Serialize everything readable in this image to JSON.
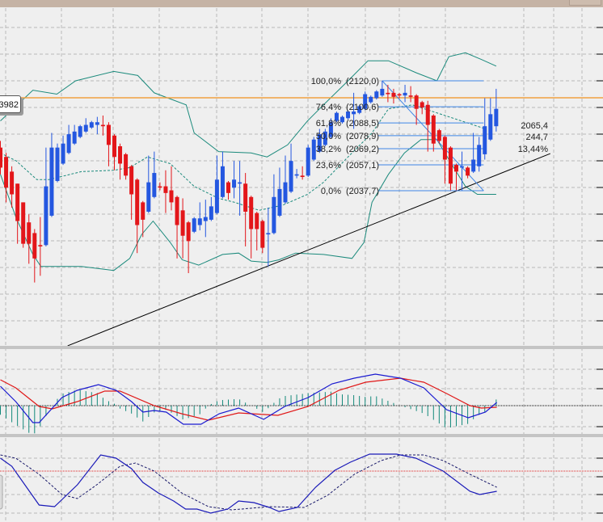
{
  "price_label": "3982",
  "stats": {
    "price": "2065,4",
    "range": "244,7",
    "percent": "13,44%"
  },
  "colors": {
    "up": "#2457e0",
    "down": "#e3161a",
    "band": "#1b8a7c",
    "fib": "#3f86e6",
    "hline": "#f0a040",
    "macd": "#1a1ad0",
    "signal": "#e01818",
    "hist": "#13897a",
    "stoch_k": "#1a1ab8",
    "stoch_d": "#1a1a6a",
    "grid": "#b8b8b8"
  },
  "chart_data": {
    "type": "candlestick",
    "title": "",
    "horizontal_line_price": 2107.3,
    "fibonacci": {
      "start_index": 67,
      "end_index": 84.8,
      "levels": [
        {
          "pct": "100,0%",
          "price": "(2120,0)",
          "value": 2120.0
        },
        {
          "pct": "76,4%",
          "price": "(2100,6)",
          "value": 2100.6
        },
        {
          "pct": "61,8%",
          "price": "(2088,5)",
          "value": 2088.5
        },
        {
          "pct": "50,0%",
          "price": "(2078,9)",
          "value": 2078.9
        },
        {
          "pct": "38,2%",
          "price": "(2069,2)",
          "value": 2069.2
        },
        {
          "pct": "23,6%",
          "price": "(2057,1)",
          "value": 2057.1
        },
        {
          "pct": "0,0%",
          "price": "(2037,7)",
          "value": 2037.7
        }
      ]
    },
    "trendline": [
      [
        11.8,
        1921.6
      ],
      [
        96.5,
        2065.5
      ]
    ],
    "candles_ohlc": [
      [
        2070,
        2075,
        2050,
        2055
      ],
      [
        2063,
        2066,
        2029,
        2040
      ],
      [
        2052,
        2056,
        2025,
        2035
      ],
      [
        2043,
        2043,
        1998,
        2015
      ],
      [
        2029,
        2029,
        1995,
        1998
      ],
      [
        2014,
        2020,
        1983,
        1998
      ],
      [
        2006,
        2009,
        1969,
        1987
      ],
      [
        1997,
        2018,
        1974,
        1996
      ],
      [
        1997,
        2070,
        1996,
        2041
      ],
      [
        2019,
        2081,
        2018,
        2070
      ],
      [
        2045,
        2073,
        2044,
        2070
      ],
      [
        2058,
        2079,
        2057,
        2073
      ],
      [
        2066,
        2087,
        2065,
        2080
      ],
      [
        2073,
        2087,
        2072,
        2082
      ],
      [
        2078,
        2087,
        2077,
        2086
      ],
      [
        2082,
        2092,
        2081,
        2087
      ],
      [
        2085,
        2090,
        2084,
        2089
      ],
      [
        2087,
        2093,
        2080,
        2089
      ],
      [
        2087,
        2094,
        2079,
        2086
      ],
      [
        2087,
        2089,
        2056,
        2072
      ],
      [
        2079,
        2080,
        2053,
        2063
      ],
      [
        2071,
        2073,
        2046,
        2058
      ],
      [
        2065,
        2066,
        2046,
        2049
      ],
      [
        2056,
        2057,
        2016,
        2035
      ],
      [
        2046,
        2047,
        1991,
        2012
      ],
      [
        2029,
        2030,
        2003,
        2016
      ],
      [
        2022,
        2064,
        2021,
        2044
      ],
      [
        2033,
        2067,
        2032,
        2051
      ],
      [
        2041,
        2044,
        2038,
        2040
      ],
      [
        2041,
        2053,
        2021,
        2036
      ],
      [
        2038,
        2056,
        2023,
        2029
      ],
      [
        2033,
        2034,
        1987,
        2012
      ],
      [
        2023,
        2032,
        1987,
        2004
      ],
      [
        2014,
        2015,
        1976,
        2000
      ],
      [
        2007,
        2018,
        2006,
        2017
      ],
      [
        2012,
        2029,
        2008,
        2017
      ],
      [
        2015,
        2031,
        2003,
        2018
      ],
      [
        2016,
        2033,
        2015,
        2026
      ],
      [
        2021,
        2064,
        2020,
        2046
      ],
      [
        2033,
        2067,
        2032,
        2056
      ],
      [
        2044,
        2045,
        2031,
        2036
      ],
      [
        2040,
        2060,
        2032,
        2046
      ],
      [
        2043,
        2060,
        2019,
        2044
      ],
      [
        2043,
        2051,
        1996,
        2022
      ],
      [
        2033,
        2034,
        1987,
        2009
      ],
      [
        2021,
        2022,
        1993,
        2009
      ],
      [
        2015,
        2016,
        1991,
        1995
      ],
      [
        2005,
        2025,
        1981,
        2006
      ],
      [
        2006,
        2050,
        2005,
        2033
      ],
      [
        2019,
        2055,
        2018,
        2039
      ],
      [
        2029,
        2064,
        2028,
        2044
      ],
      [
        2037,
        2073,
        2036,
        2060
      ],
      [
        2049,
        2054,
        2047,
        2050
      ],
      [
        2049,
        2056,
        2046,
        2048
      ],
      [
        2049,
        2072,
        2048,
        2070
      ],
      [
        2061,
        2078,
        2060,
        2076
      ],
      [
        2067,
        2084,
        2066,
        2080
      ],
      [
        2072,
        2084,
        2071,
        2082
      ],
      [
        2078,
        2092,
        2077,
        2089
      ],
      [
        2090,
        2097,
        2089,
        2096
      ],
      [
        2089,
        2094,
        2088,
        2093
      ],
      [
        2092,
        2098,
        2091,
        2097
      ],
      [
        2095,
        2111,
        2084,
        2097
      ],
      [
        2096,
        2102,
        2095,
        2101
      ],
      [
        2099,
        2112,
        2098,
        2110
      ],
      [
        2104,
        2109,
        2103,
        2108
      ],
      [
        2107,
        2113,
        2106,
        2112
      ],
      [
        2109,
        2120,
        2108,
        2114
      ],
      [
        2111,
        2117,
        2104,
        2110
      ],
      [
        2111,
        2114,
        2103,
        2108
      ],
      [
        2110,
        2111,
        2107,
        2109
      ],
      [
        2109,
        2117,
        2104,
        2111
      ],
      [
        2109,
        2116,
        2104,
        2108
      ],
      [
        2109,
        2110,
        2087,
        2099
      ],
      [
        2104,
        2105,
        2095,
        2100
      ],
      [
        2102,
        2105,
        2067,
        2087
      ],
      [
        2094,
        2095,
        2067,
        2073
      ],
      [
        2083,
        2084,
        2073,
        2075
      ],
      [
        2078,
        2079,
        2043,
        2061
      ],
      [
        2070,
        2071,
        2038,
        2043
      ],
      [
        2057,
        2058,
        2038,
        2052
      ],
      [
        2055,
        2067,
        2038,
        2056
      ],
      [
        2055,
        2056,
        2047,
        2049
      ],
      [
        2052,
        2081,
        2051,
        2061
      ],
      [
        2056,
        2078,
        2052,
        2072
      ],
      [
        2065,
        2107,
        2061,
        2086
      ],
      [
        2076,
        2107,
        2075,
        2095
      ],
      [
        2086,
        2114,
        2082,
        2099
      ]
    ],
    "bollinger": {
      "upper": [
        [
          0,
          2090
        ],
        [
          5.7,
          2113
        ],
        [
          9.9,
          2110
        ],
        [
          13.2,
          2120
        ],
        [
          19.9,
          2127
        ],
        [
          24.1,
          2124
        ],
        [
          27,
          2111
        ],
        [
          32.6,
          2102
        ],
        [
          34,
          2081
        ],
        [
          38.3,
          2067
        ],
        [
          44,
          2066
        ],
        [
          46.8,
          2063
        ],
        [
          50.4,
          2072
        ],
        [
          53.9,
          2090
        ],
        [
          56.7,
          2102
        ],
        [
          61,
          2120
        ],
        [
          64.5,
          2135
        ],
        [
          68.1,
          2135
        ],
        [
          73,
          2126
        ],
        [
          76.6,
          2120
        ],
        [
          78.7,
          2138
        ],
        [
          81.6,
          2141
        ],
        [
          84.4,
          2136
        ],
        [
          87,
          2131
        ]
      ],
      "middle": [
        [
          0,
          2066
        ],
        [
          2.8,
          2060
        ],
        [
          6.4,
          2046
        ],
        [
          8.5,
          2046
        ],
        [
          14.2,
          2052
        ],
        [
          19.9,
          2053
        ],
        [
          22.7,
          2055
        ],
        [
          25.8,
          2063
        ],
        [
          29.8,
          2058
        ],
        [
          34,
          2041
        ],
        [
          38.3,
          2032
        ],
        [
          41.1,
          2029
        ],
        [
          45.4,
          2023
        ],
        [
          49.6,
          2027
        ],
        [
          53.9,
          2035
        ],
        [
          56.7,
          2044
        ],
        [
          61,
          2063
        ],
        [
          65.2,
          2081
        ],
        [
          68.1,
          2099
        ],
        [
          72.3,
          2102
        ],
        [
          76.6,
          2096
        ],
        [
          80.9,
          2090
        ],
        [
          85.1,
          2084
        ]
      ],
      "lower": [
        [
          0,
          2050
        ],
        [
          2.8,
          2017
        ],
        [
          5.7,
          1990
        ],
        [
          7.1,
          1981
        ],
        [
          14.2,
          1981
        ],
        [
          19.9,
          1978
        ],
        [
          22.7,
          1987
        ],
        [
          24.8,
          2005
        ],
        [
          26.8,
          2015
        ],
        [
          29.8,
          1999
        ],
        [
          31.9,
          1986
        ],
        [
          34.8,
          1982
        ],
        [
          39,
          1990
        ],
        [
          41.8,
          1991
        ],
        [
          44,
          1985
        ],
        [
          46.8,
          1984
        ],
        [
          48.9,
          1986
        ],
        [
          51.8,
          1991
        ],
        [
          56.7,
          1990
        ],
        [
          61.7,
          1987
        ],
        [
          63.8,
          1999
        ],
        [
          65.2,
          2029
        ],
        [
          68.1,
          2050
        ],
        [
          70.9,
          2066
        ],
        [
          73.8,
          2076
        ],
        [
          76.6,
          2076
        ],
        [
          79.4,
          2056
        ],
        [
          81.6,
          2041
        ],
        [
          83.7,
          2035
        ],
        [
          87,
          2035
        ]
      ]
    },
    "macd": {
      "macd": [
        [
          0,
          24
        ],
        [
          2.7,
          5
        ],
        [
          5.7,
          -21
        ],
        [
          6.8,
          -21
        ],
        [
          10.8,
          10
        ],
        [
          13.5,
          19
        ],
        [
          17.2,
          26
        ],
        [
          20.3,
          19
        ],
        [
          23,
          5
        ],
        [
          25,
          -8
        ],
        [
          27,
          -6
        ],
        [
          29.1,
          -8
        ],
        [
          32.1,
          -23
        ],
        [
          35.2,
          -23
        ],
        [
          38.4,
          -10
        ],
        [
          41.8,
          -3
        ],
        [
          46.2,
          -17
        ],
        [
          49.9,
          -1
        ],
        [
          54,
          10
        ],
        [
          58.2,
          27
        ],
        [
          62.1,
          34
        ],
        [
          65.8,
          39
        ],
        [
          70.2,
          34
        ],
        [
          74.3,
          22
        ],
        [
          78.3,
          -5
        ],
        [
          82.1,
          -15
        ],
        [
          85.1,
          -8
        ],
        [
          87.1,
          4
        ]
      ],
      "signal": [
        [
          0,
          32
        ],
        [
          2.7,
          22
        ],
        [
          6.8,
          -1
        ],
        [
          9.1,
          -4
        ],
        [
          13.5,
          5
        ],
        [
          18.3,
          18
        ],
        [
          21,
          18
        ],
        [
          27,
          0
        ],
        [
          31.8,
          -10
        ],
        [
          36.5,
          -18
        ],
        [
          41.8,
          -9
        ],
        [
          48.7,
          -12
        ],
        [
          54,
          -1
        ],
        [
          59.4,
          19
        ],
        [
          64.1,
          29
        ],
        [
          70.2,
          34
        ],
        [
          74.3,
          29
        ],
        [
          78.3,
          15
        ],
        [
          82.4,
          0
        ],
        [
          84.4,
          -3
        ],
        [
          87.1,
          -2
        ]
      ],
      "histogram_factor": 1.4
    },
    "stochastic": {
      "k": [
        [
          0,
          73
        ],
        [
          2,
          63
        ],
        [
          6.8,
          15
        ],
        [
          9.5,
          13
        ],
        [
          13.5,
          40
        ],
        [
          17.6,
          77
        ],
        [
          20.3,
          73
        ],
        [
          23,
          60
        ],
        [
          25,
          43
        ],
        [
          27.7,
          30
        ],
        [
          30.4,
          20
        ],
        [
          32.5,
          10
        ],
        [
          34.5,
          10
        ],
        [
          36.9,
          5
        ],
        [
          39.9,
          10
        ],
        [
          41.8,
          20
        ],
        [
          44.5,
          18
        ],
        [
          47.2,
          12
        ],
        [
          48.9,
          7
        ],
        [
          52.1,
          12
        ],
        [
          55.3,
          37
        ],
        [
          58.7,
          58
        ],
        [
          61.4,
          68
        ],
        [
          64.8,
          78
        ],
        [
          69.5,
          78
        ],
        [
          72.9,
          73
        ],
        [
          77.7,
          57
        ],
        [
          82.4,
          32
        ],
        [
          84.1,
          28
        ],
        [
          87.1,
          32
        ]
      ],
      "d": [
        [
          0,
          77
        ],
        [
          2.7,
          73
        ],
        [
          6.8,
          53
        ],
        [
          10.8,
          28
        ],
        [
          13.5,
          23
        ],
        [
          16.9,
          40
        ],
        [
          21,
          63
        ],
        [
          23.7,
          67
        ],
        [
          27,
          57
        ],
        [
          31.8,
          30
        ],
        [
          36.5,
          13
        ],
        [
          40.6,
          9
        ],
        [
          47.2,
          13
        ],
        [
          53.3,
          12
        ],
        [
          57.4,
          27
        ],
        [
          62.1,
          53
        ],
        [
          66.8,
          70
        ],
        [
          70.2,
          77
        ],
        [
          74.3,
          77
        ],
        [
          77.7,
          70
        ],
        [
          82.4,
          53
        ],
        [
          87.1,
          37
        ]
      ],
      "level": 57
    }
  }
}
